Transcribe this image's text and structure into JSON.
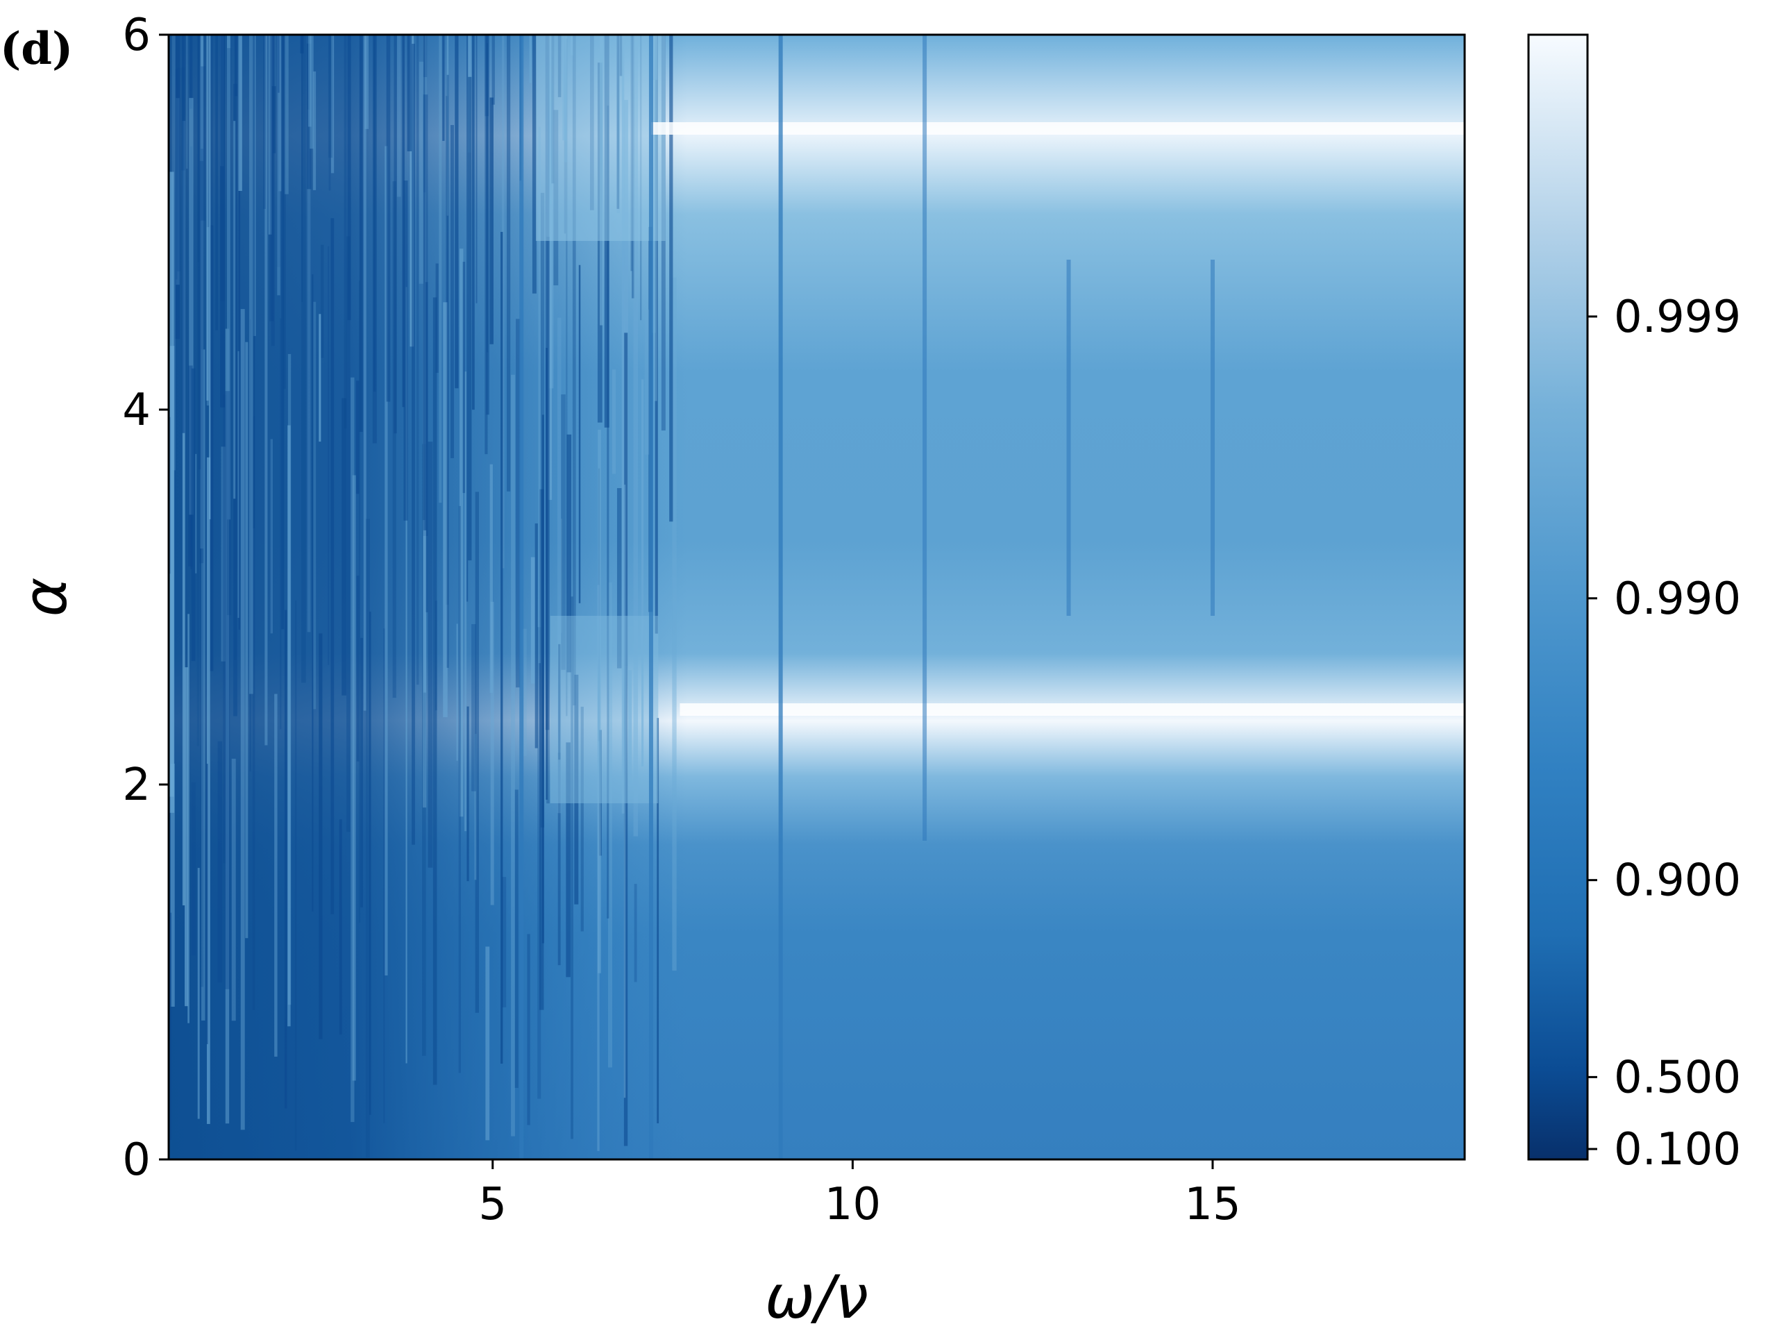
{
  "panel_label": "(d)",
  "chart_data": {
    "type": "heatmap",
    "xlabel": "ω/ν",
    "ylabel": "α",
    "xlim": [
      0.5,
      18.5
    ],
    "ylim": [
      0,
      6
    ],
    "x_ticks": [
      {
        "value": 5,
        "label": "5"
      },
      {
        "value": 10,
        "label": "10"
      },
      {
        "value": 15,
        "label": "15"
      }
    ],
    "y_ticks": [
      {
        "value": 0,
        "label": "0"
      },
      {
        "value": 2,
        "label": "2"
      },
      {
        "value": 4,
        "label": "4"
      },
      {
        "value": 6,
        "label": "6"
      }
    ],
    "colorbar": {
      "colormap": "Blues_r",
      "color_low": "#08306b",
      "color_high": "#f7fbff",
      "ticks": [
        {
          "value": 0.1,
          "label": "0.100"
        },
        {
          "value": 0.5,
          "label": "0.500"
        },
        {
          "value": 0.9,
          "label": "0.900"
        },
        {
          "value": 0.99,
          "label": "0.990"
        },
        {
          "value": 0.999,
          "label": "0.999"
        }
      ]
    },
    "features": {
      "bright_bands_alpha": [
        2.4,
        5.5
      ],
      "resonance_lines_omega": [
        5.4,
        7.2,
        9.0,
        11.0,
        13.0,
        15.0
      ],
      "dark_region_omega_max": 5.5
    }
  }
}
